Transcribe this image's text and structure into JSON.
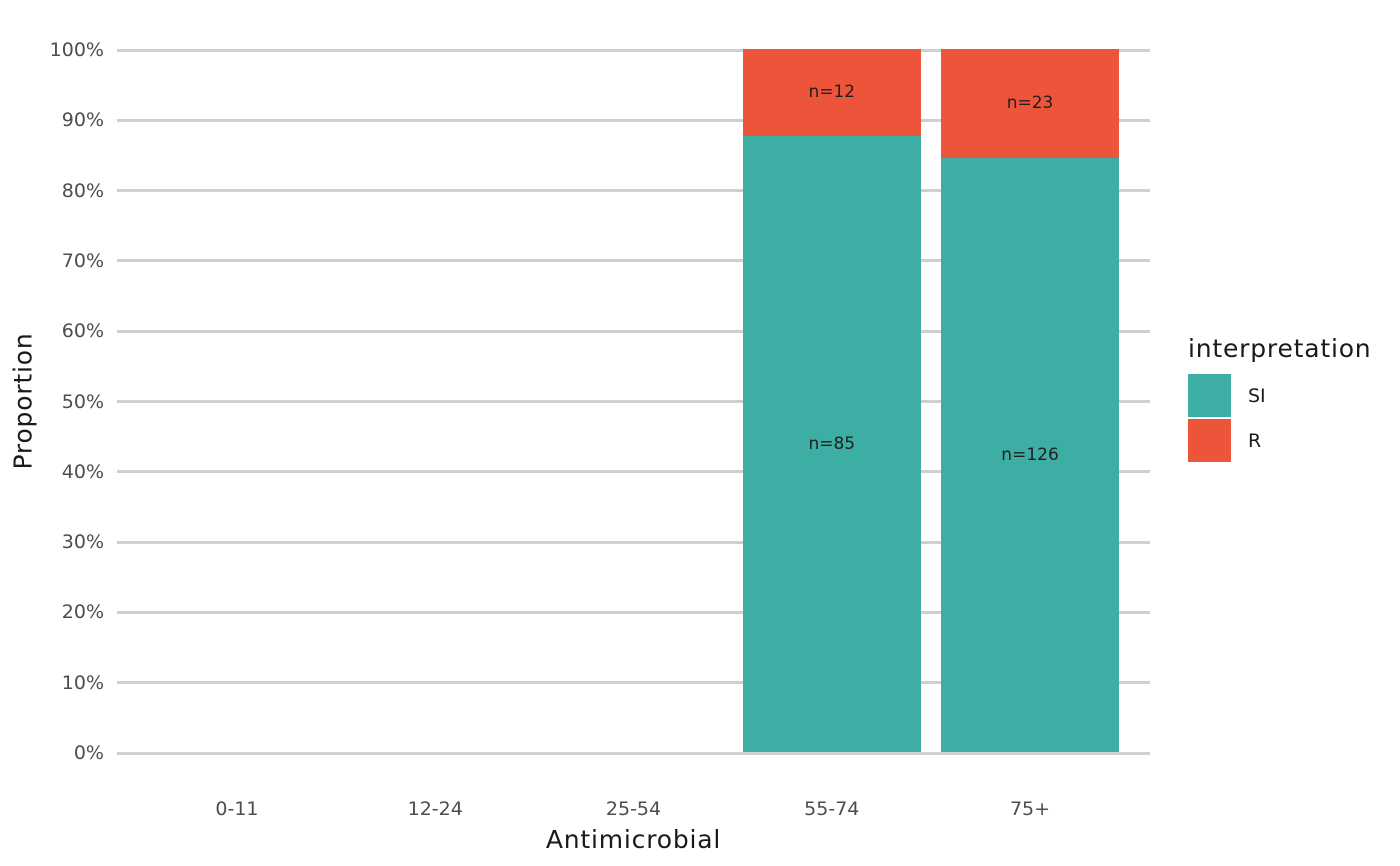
{
  "chart_data": {
    "type": "bar",
    "subtype": "stacked-percent",
    "title": "",
    "xlabel": "Antimicrobial",
    "ylabel": "Proportion",
    "categories": [
      "0-11",
      "12-24",
      "25-54",
      "55-74",
      "75+"
    ],
    "series": [
      {
        "name": "SI",
        "color": "#3CAEA3",
        "counts": [
          null,
          null,
          null,
          85,
          126
        ],
        "bar_labels": [
          null,
          null,
          null,
          "n=85",
          "n=126"
        ]
      },
      {
        "name": "R",
        "color": "#ED553B",
        "counts": [
          null,
          null,
          null,
          12,
          23
        ],
        "bar_labels": [
          null,
          null,
          null,
          "n=12",
          "n=23"
        ]
      }
    ],
    "y_ticks": [
      "0%",
      "10%",
      "20%",
      "30%",
      "40%",
      "50%",
      "60%",
      "70%",
      "80%",
      "90%",
      "100%"
    ],
    "ylim": [
      0,
      1
    ],
    "grid": "horizontal-major-only",
    "legend": {
      "title": "interpretation",
      "position": "right",
      "entries": [
        "SI",
        "R"
      ]
    },
    "colors": {
      "gridline": "#CFCFCF",
      "tick_text": "#4D4D4D",
      "title_text": "#1A1A1A",
      "bar_label_text": "#1F1F1F",
      "background": "#FFFFFF"
    }
  }
}
